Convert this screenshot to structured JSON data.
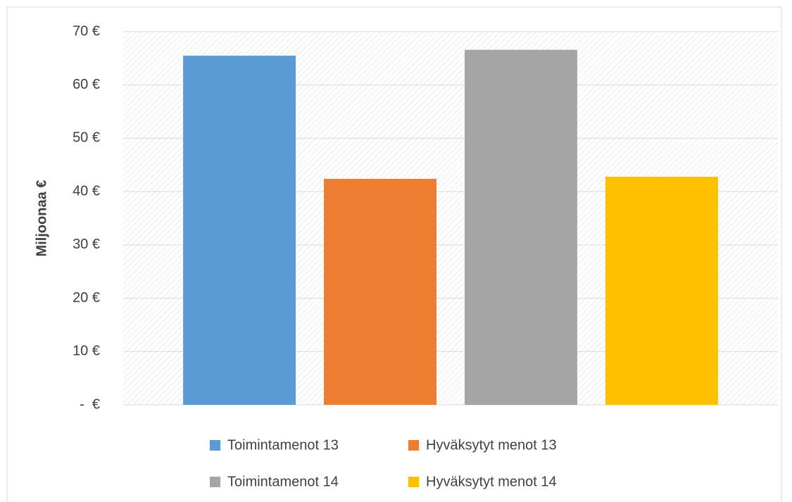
{
  "chart_data": {
    "type": "bar",
    "y_label": "Miljoonaa €",
    "categories": [
      null
    ],
    "series": [
      {
        "name": "Toimintamenot 13",
        "color": "#5b9bd5",
        "values": [
          65.5
        ]
      },
      {
        "name": "Hyväksytyt menot 13",
        "color": "#ed7d31",
        "values": [
          42.4
        ]
      },
      {
        "name": "Toimintamenot 14",
        "color": "#a5a5a5",
        "values": [
          66.6
        ]
      },
      {
        "name": "Hyväksytyt menot 14",
        "color": "#ffc000",
        "values": [
          42.8
        ]
      }
    ],
    "ylim": [
      0,
      70
    ],
    "yticks": [
      {
        "value": 0,
        "label": "-  €"
      },
      {
        "value": 10,
        "label": "10 €"
      },
      {
        "value": 20,
        "label": "20 €"
      },
      {
        "value": 30,
        "label": "30 €"
      },
      {
        "value": 40,
        "label": "40 €"
      },
      {
        "value": 50,
        "label": "50 €"
      },
      {
        "value": 60,
        "label": "60 €"
      },
      {
        "value": 70,
        "label": "70 €"
      }
    ],
    "grid": true,
    "legend": "bottom"
  }
}
